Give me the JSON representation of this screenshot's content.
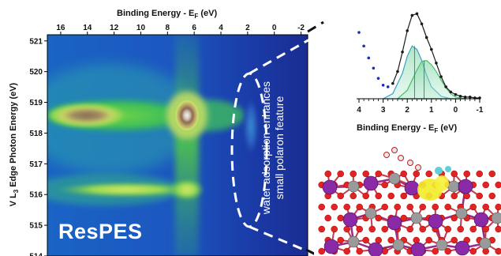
{
  "heatmap": {
    "xlabel": "Binding Energy - E",
    "xlabel_sub": "F",
    "xlabel_unit": " (eV)",
    "ylabel_prefix": "V L",
    "ylabel_sub": "3",
    "ylabel_rest": " Edge Photon Energy (eV)",
    "x_ticks": [
      "16",
      "14",
      "12",
      "10",
      "8",
      "6",
      "4",
      "2",
      "0",
      "-2"
    ],
    "y_ticks": [
      "521",
      "520",
      "519",
      "518",
      "517",
      "516",
      "515",
      "514"
    ],
    "brand_label": "ResPES",
    "annotation_line1": "water adsorption enhances",
    "annotation_line2": "small polaron feature"
  },
  "spectrum": {
    "xlabel": "Binding Energy - E",
    "xlabel_sub": "F",
    "xlabel_unit": " (eV)",
    "x_ticks": [
      "4",
      "3",
      "2",
      "1",
      "0",
      "-1"
    ]
  },
  "chart_data": [
    {
      "type": "heatmap",
      "title": "",
      "subtitle": "",
      "xlabel": "Binding Energy - EF (eV)",
      "ylabel": "V L3 Edge Photon Energy (eV)",
      "xlim": [
        17,
        -2.5
      ],
      "ylim": [
        514,
        521.2
      ],
      "x_reversed": true,
      "colormap": "blue-green-yellow-brown-white",
      "grid": false,
      "features": [
        {
          "x": 14,
          "y": 518.5,
          "intensity": "high"
        },
        {
          "x": 6,
          "y": 518.5,
          "intensity": "max"
        },
        {
          "x": 6,
          "y": 516,
          "intensity": "medium"
        },
        {
          "x": 13,
          "y": 516,
          "intensity": "medium"
        },
        {
          "x": 1.5,
          "y": 518,
          "intensity": "low"
        }
      ],
      "annotations": [
        "ResPES",
        "water adsorption enhances small polaron feature"
      ]
    },
    {
      "type": "line",
      "title": "",
      "xlabel": "Binding Energy - EF (eV)",
      "xlim": [
        4,
        -1
      ],
      "x_reversed": true,
      "series": [
        {
          "x": [
            4.0,
            3.8,
            3.6,
            3.4,
            3.2,
            3.0,
            2.8,
            2.6,
            2.4,
            2.2,
            2.0,
            1.8,
            1.6,
            1.4,
            1.2,
            1.0,
            0.8,
            0.6,
            0.4,
            0.2,
            0.0,
            -0.2,
            -0.4,
            -0.6,
            -0.8,
            -1.0
          ],
          "values": [
            0.78,
            0.62,
            0.48,
            0.36,
            0.24,
            0.16,
            0.14,
            0.18,
            0.32,
            0.55,
            0.8,
            0.98,
            1.0,
            0.88,
            0.72,
            0.58,
            0.42,
            0.26,
            0.14,
            0.08,
            0.05,
            0.03,
            0.02,
            0.02,
            0.01,
            0.01
          ]
        },
        {
          "x": [
            3.0,
            2.6,
            2.2,
            2.0,
            1.8,
            1.6,
            1.4,
            1.2,
            1.0,
            0.6,
            0.2,
            -0.2
          ],
          "values": [
            0.0,
            0.06,
            0.3,
            0.5,
            0.62,
            0.58,
            0.45,
            0.28,
            0.14,
            0.03,
            0.0,
            0.0
          ]
        },
        {
          "x": [
            2.4,
            2.0,
            1.8,
            1.6,
            1.4,
            1.2,
            1.0,
            0.8,
            0.6,
            0.4,
            0.2,
            0.0,
            -0.4
          ],
          "values": [
            0.0,
            0.1,
            0.22,
            0.34,
            0.44,
            0.45,
            0.4,
            0.32,
            0.22,
            0.13,
            0.06,
            0.02,
            0.0
          ]
        }
      ]
    }
  ]
}
